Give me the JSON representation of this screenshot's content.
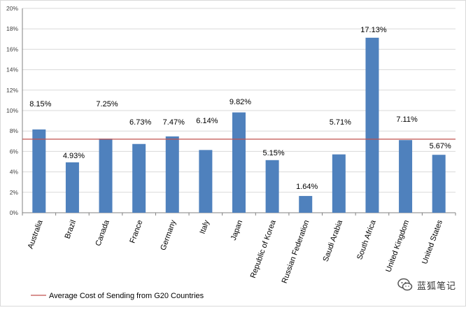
{
  "chart_data": {
    "type": "bar",
    "categories": [
      "Australia",
      "Brazil",
      "Canada",
      "France",
      "Germany",
      "Italy",
      "Japan",
      "Republic of Korea",
      "Russian Federation",
      "Saudi Arabia",
      "South Africa",
      "United Kingdom",
      "United States"
    ],
    "values": [
      8.15,
      4.93,
      7.25,
      6.73,
      7.47,
      6.14,
      9.82,
      5.15,
      1.64,
      5.71,
      17.13,
      7.11,
      5.67
    ],
    "data_labels": [
      "8.15%",
      "4.93%",
      "7.25%",
      "6.73%",
      "7.47%",
      "6.14%",
      "9.82%",
      "5.15%",
      "1.64%",
      "5.71%",
      "17.13%",
      "7.11%",
      "5.67%"
    ],
    "yticks": [
      "0%",
      "2%",
      "4%",
      "6%",
      "8%",
      "10%",
      "12%",
      "14%",
      "16%",
      "18%",
      "20%"
    ],
    "ylim": [
      0,
      20
    ],
    "reference_line": {
      "name": "Average Cost of Sending from G20 Countries",
      "value": 7.2
    },
    "legend_placement": "bottom-left",
    "grid": true,
    "colors": {
      "bar": "#4f81bd",
      "line": "#c0504d",
      "grid": "#d9d9d9",
      "axis": "#808080"
    }
  },
  "watermark": {
    "text": "蓝狐笔记",
    "icon": "wechat-icon"
  }
}
